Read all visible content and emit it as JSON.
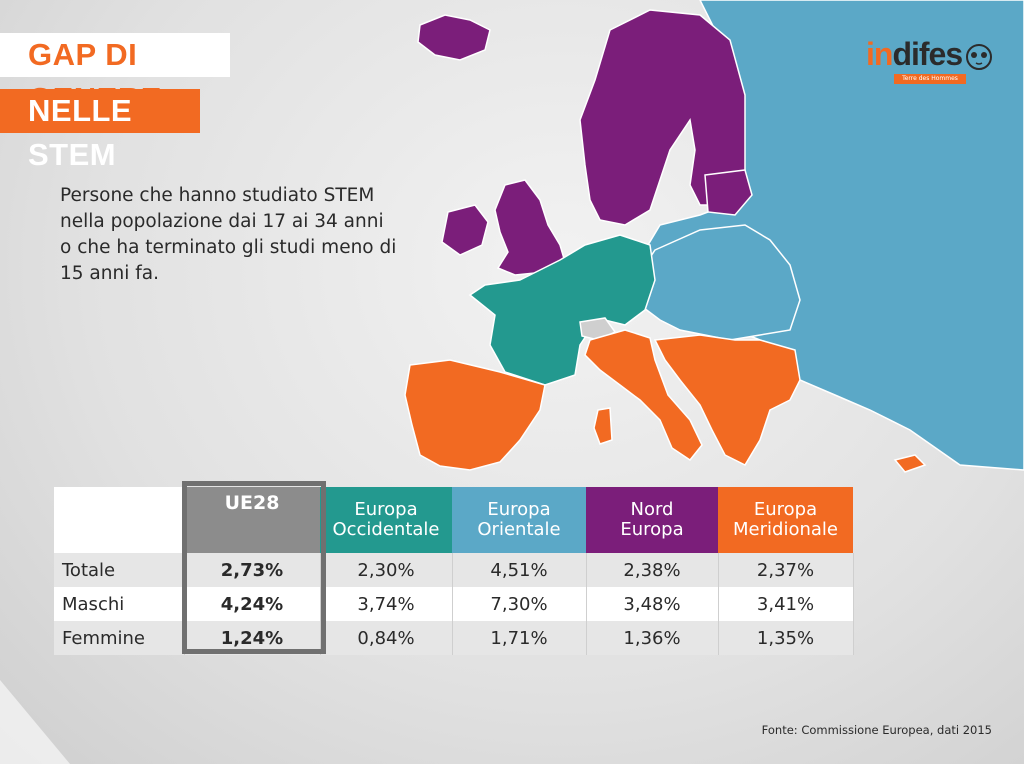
{
  "title": {
    "line1": "GAP DI GENERE",
    "line2": "NELLE STEM"
  },
  "description": "Persone che hanno studiato STEM nella popolazione dai 17 ai 34 anni o che ha terminato gli studi meno di 15 anni fa.",
  "logo": {
    "text_first": "in",
    "text_rest": "difes",
    "tagline": "Terre des Hommes",
    "icon": "owl-mascot-icon"
  },
  "colors": {
    "occidentale": "#23998f",
    "orientale": "#5ba8c7",
    "nord": "#7b1e7a",
    "meridionale": "#f26a22",
    "ue": "#8c8c8c",
    "neutral_land": "#cfcfcf"
  },
  "table": {
    "headers": {
      "ue": "UE28",
      "occidentale": [
        "Europa",
        "Occidentale"
      ],
      "orientale": [
        "Europa",
        "Orientale"
      ],
      "nord": [
        "Nord",
        "Europa"
      ],
      "meridionale": [
        "Europa",
        "Meridionale"
      ]
    },
    "rows": [
      {
        "label": "Totale",
        "values": [
          "2,73%",
          "2,30%",
          "4,51%",
          "2,38%",
          "2,37%"
        ]
      },
      {
        "label": "Maschi",
        "values": [
          "4,24%",
          "3,74%",
          "7,30%",
          "3,48%",
          "3,41%"
        ]
      },
      {
        "label": "Femmine",
        "values": [
          "1,24%",
          "0,84%",
          "1,71%",
          "1,36%",
          "1,35%"
        ]
      }
    ]
  },
  "source": "Fonte: Commissione Europea, dati 2015"
}
